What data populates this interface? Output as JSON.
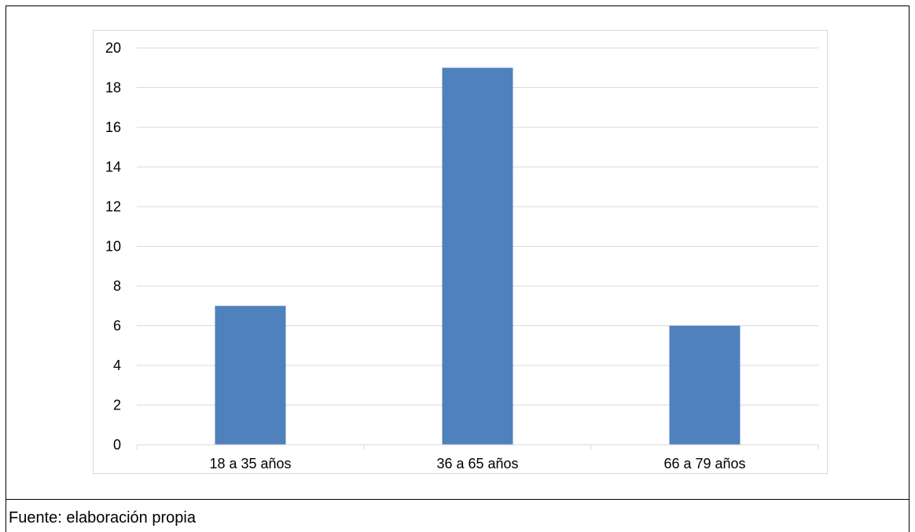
{
  "chart_data": {
    "type": "bar",
    "categories": [
      "18 a 35 años",
      "36 a 65 años",
      "66 a 79 años"
    ],
    "values": [
      7,
      19,
      6
    ],
    "ylim": [
      0,
      20
    ],
    "yticks": [
      0,
      2,
      4,
      6,
      8,
      10,
      12,
      14,
      16,
      18,
      20
    ],
    "grid": true,
    "legend": "none",
    "bar_color": "#4f81bd",
    "grid_color": "#d9d9d9",
    "axis_color": "#d9d9d9"
  },
  "footer": {
    "source": "Fuente: elaboración propia"
  }
}
